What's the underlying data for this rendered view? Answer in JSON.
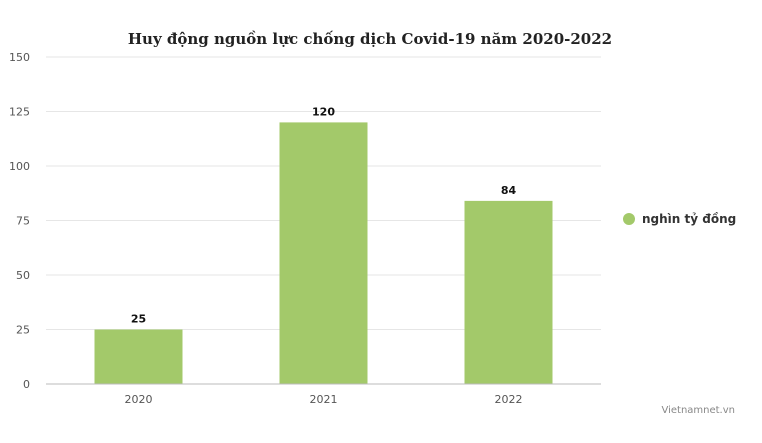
{
  "chart_data": {
    "type": "bar",
    "title": "Huy động nguồn lực chống dịch Covid-19 năm 2020-2022",
    "categories": [
      "2020",
      "2021",
      "2022"
    ],
    "series": [
      {
        "name": "nghìn tỷ đồng",
        "values": [
          25,
          120,
          84
        ],
        "color": "#a3c96a"
      }
    ],
    "ylim": [
      0,
      150
    ],
    "yticks": [
      0,
      25,
      50,
      75,
      100,
      125,
      150
    ],
    "grid": true,
    "legend": "right",
    "data_labels": true
  },
  "credit": "Vietnamnet.vn"
}
